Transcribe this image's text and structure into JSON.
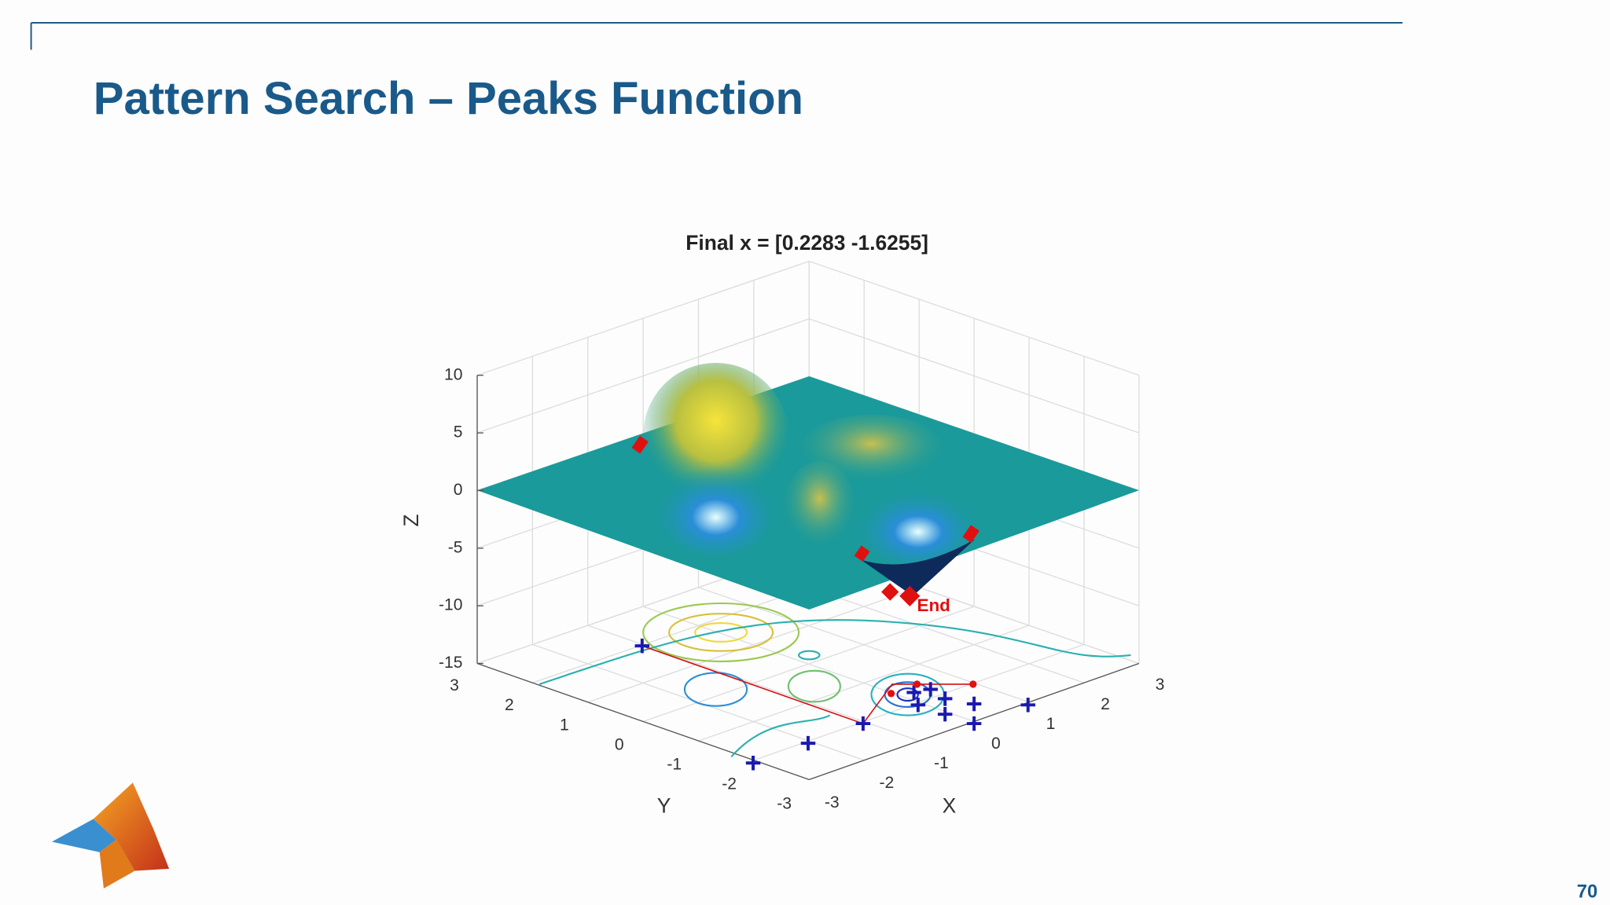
{
  "header": {
    "title": "Pattern Search – Peaks Function"
  },
  "page_number": 70,
  "figure": {
    "title": "Final x = [0.2283 -1.6255]",
    "z_label": "Z",
    "y_label": "Y",
    "x_label": "X",
    "z_ticks": [
      10,
      5,
      0,
      -5,
      -10,
      -15
    ],
    "y_ticks": [
      3,
      2,
      1,
      0,
      -1,
      -2,
      -3
    ],
    "x_ticks": [
      -3,
      -2,
      -1,
      0,
      1,
      2,
      3
    ],
    "annotation": "End"
  }
}
